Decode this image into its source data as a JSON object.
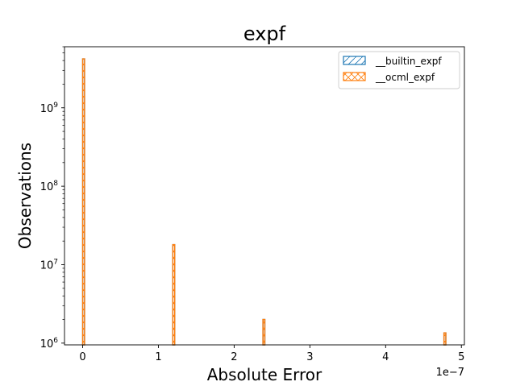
{
  "chart_data": {
    "type": "bar",
    "title": "expf",
    "xlabel": "Absolute Error",
    "ylabel": "Observations",
    "x_offset_label": "1e−7",
    "xlim": [
      -2.4e-08,
      5.04e-07
    ],
    "ylim_log": [
      950000,
      6000000000
    ],
    "y_scale": "log",
    "grid": false,
    "legend_position": "top-right",
    "x_ticks": [
      {
        "value": 0,
        "label": "0"
      },
      {
        "value": 1e-07,
        "label": "1"
      },
      {
        "value": 2e-07,
        "label": "2"
      },
      {
        "value": 3e-07,
        "label": "3"
      },
      {
        "value": 4e-07,
        "label": "4"
      },
      {
        "value": 5e-07,
        "label": "5"
      }
    ],
    "y_ticks": [
      {
        "value": 1000000,
        "base": "10",
        "exp": "6"
      },
      {
        "value": 10000000,
        "base": "10",
        "exp": "7"
      },
      {
        "value": 100000000,
        "base": "10",
        "exp": "8"
      },
      {
        "value": 1000000000,
        "base": "10",
        "exp": "9"
      }
    ],
    "bin_width": 2.5e-09,
    "series": [
      {
        "name": "__builtin_expf",
        "color": "#1f77b4",
        "hatch": "/",
        "bins": [
          {
            "x": 0,
            "count": 4200000000
          },
          {
            "x": 1.19e-07,
            "count": 18000000
          },
          {
            "x": 2.38e-07,
            "count": 2000000
          },
          {
            "x": 4.77e-07,
            "count": 1350000
          }
        ]
      },
      {
        "name": "__ocml_expf",
        "color": "#ff7f0e",
        "hatch": "x",
        "bins": [
          {
            "x": 0,
            "count": 4200000000
          },
          {
            "x": 1.19e-07,
            "count": 18000000
          },
          {
            "x": 2.38e-07,
            "count": 2000000
          },
          {
            "x": 4.77e-07,
            "count": 1350000
          }
        ]
      }
    ]
  }
}
